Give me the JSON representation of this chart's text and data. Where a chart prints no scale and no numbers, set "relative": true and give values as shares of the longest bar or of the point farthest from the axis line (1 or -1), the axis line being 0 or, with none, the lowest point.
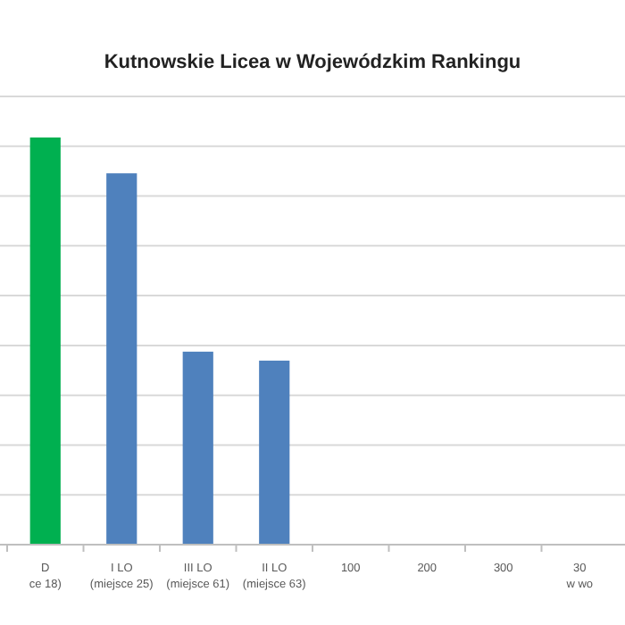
{
  "chart_data": {
    "type": "bar",
    "title": "Kutnowskie Licea w Wojewódzkim Rankingu",
    "relative": true,
    "grid": "y",
    "categories": [
      "D\nce 18)",
      "I LO\n(miejsce 25)",
      "III LO\n(miejsce 61)",
      "II LO\n(miejsce 63)",
      "100",
      "200",
      "300",
      "30\nw wo"
    ],
    "values": [
      1,
      0.912,
      0.474,
      0.452,
      null,
      null,
      null,
      null
    ],
    "colors": [
      "#00b050",
      "#4f81bd",
      "#4f81bd",
      "#4f81bd",
      null,
      null,
      null,
      null
    ]
  }
}
